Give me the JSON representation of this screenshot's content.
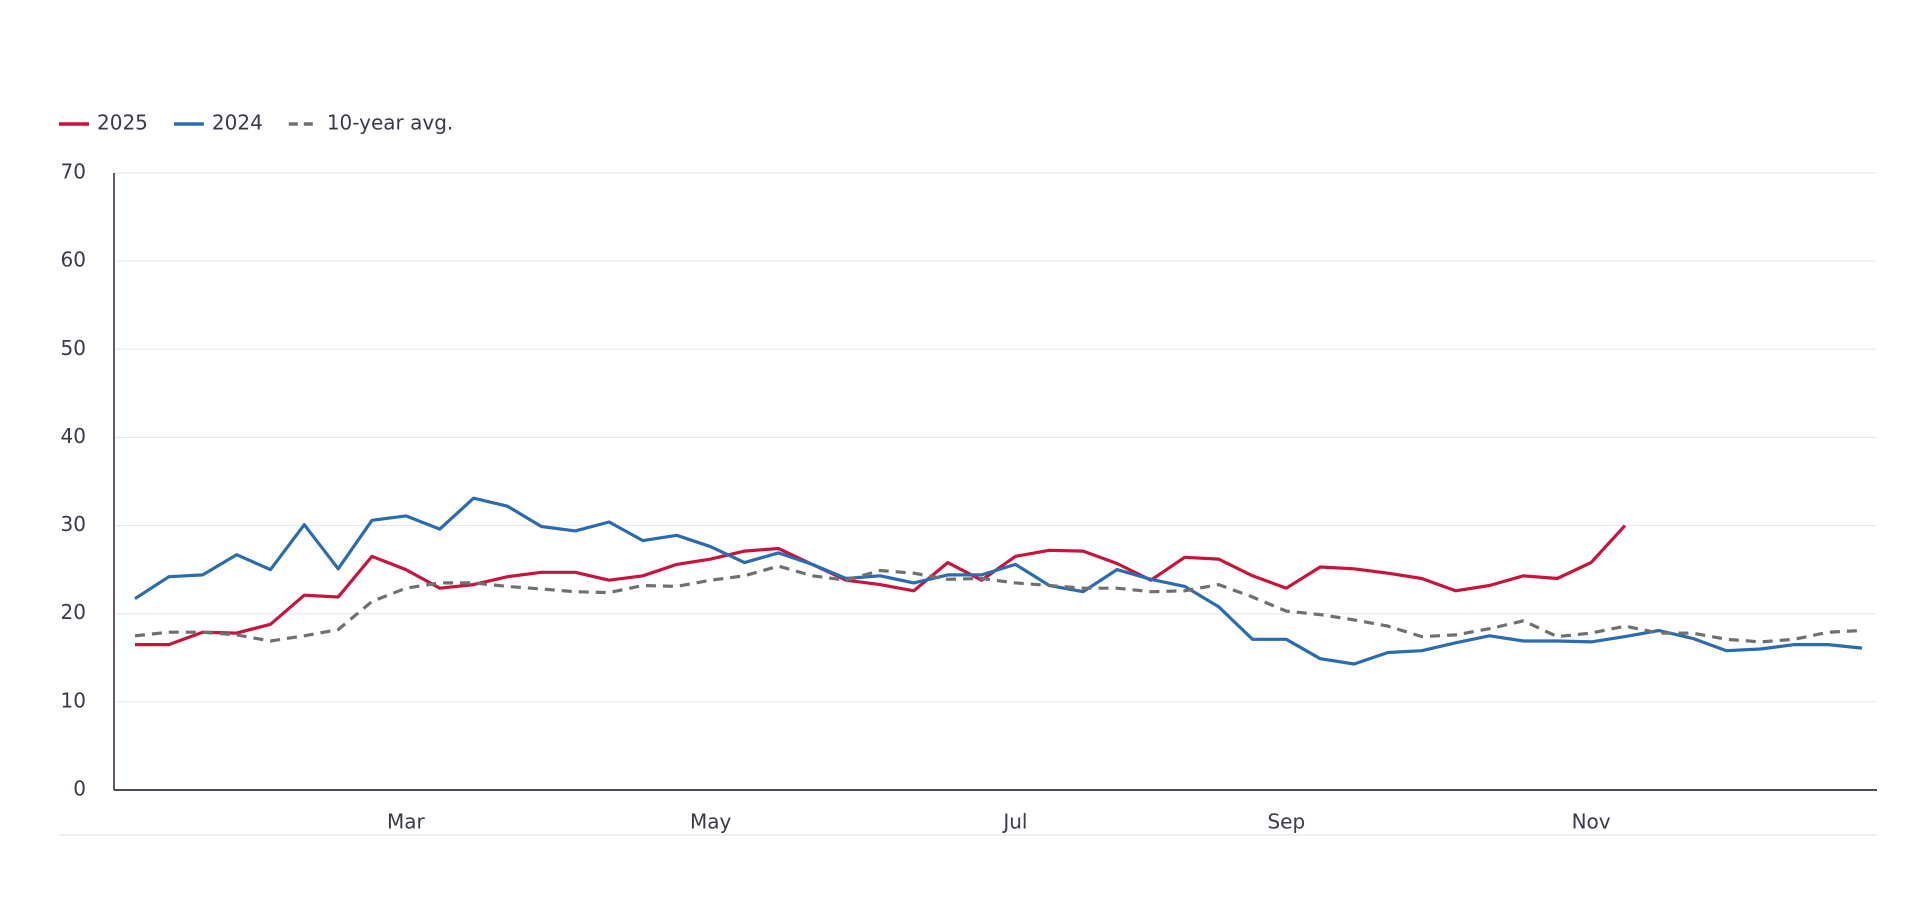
{
  "chart_data": {
    "type": "line",
    "categories": [
      null,
      null,
      null,
      null,
      null,
      null,
      null,
      null,
      "Mar",
      null,
      null,
      null,
      null,
      null,
      null,
      null,
      null,
      "May",
      null,
      null,
      null,
      null,
      null,
      null,
      null,
      null,
      "Jul",
      null,
      null,
      null,
      null,
      null,
      null,
      null,
      "Sep",
      null,
      null,
      null,
      null,
      null,
      null,
      null,
      null,
      "Nov",
      null,
      null,
      null,
      null,
      null,
      null,
      null,
      null
    ],
    "series": [
      {
        "name": "2025",
        "color": "#c8143c",
        "values": [
          16.5,
          16.5,
          17.9,
          17.8,
          18.8,
          22.1,
          21.9,
          26.5,
          25.0,
          22.9,
          23.3,
          24.2,
          24.7,
          24.7,
          23.8,
          24.3,
          25.6,
          26.2,
          27.1,
          27.4,
          25.6,
          23.8,
          23.3,
          22.6,
          25.8,
          23.8,
          26.5,
          27.2,
          27.1,
          25.7,
          23.8,
          26.4,
          26.2,
          24.3,
          22.9,
          25.3,
          25.1,
          24.6,
          24.0,
          22.6,
          23.2,
          24.3,
          24.0,
          25.8,
          30.0,
          null,
          null,
          null,
          null,
          null,
          null,
          null
        ]
      },
      {
        "name": "2024",
        "color": "#2b6cb0",
        "values": [
          21.7,
          24.2,
          24.4,
          26.7,
          25.0,
          30.1,
          25.1,
          30.6,
          31.1,
          29.6,
          33.1,
          32.2,
          29.9,
          29.4,
          30.4,
          28.3,
          28.9,
          27.6,
          25.8,
          26.9,
          25.6,
          24.0,
          24.3,
          23.5,
          24.4,
          24.4,
          25.6,
          23.2,
          22.5,
          25.0,
          23.9,
          23.1,
          20.8,
          17.1,
          17.1,
          14.9,
          14.3,
          15.6,
          15.8,
          16.7,
          17.5,
          16.9,
          16.9,
          16.8,
          17.4,
          18.1,
          17.2,
          15.8,
          16.0,
          16.5,
          16.5,
          16.1
        ]
      },
      {
        "name": "10-year avg.",
        "color": "#707070",
        "dashed": true,
        "values": [
          17.5,
          17.9,
          17.9,
          17.6,
          16.9,
          17.5,
          18.2,
          21.4,
          22.9,
          23.5,
          23.5,
          23.1,
          22.8,
          22.5,
          22.4,
          23.2,
          23.1,
          23.8,
          24.3,
          25.4,
          24.3,
          23.8,
          24.9,
          24.6,
          23.9,
          24.0,
          23.5,
          23.2,
          22.9,
          22.9,
          22.5,
          22.6,
          23.3,
          21.9,
          20.3,
          19.9,
          19.3,
          18.6,
          17.4,
          17.6,
          18.3,
          19.2,
          17.4,
          17.8,
          18.6,
          17.8,
          17.8,
          17.1,
          16.8,
          17.1,
          17.9,
          18.1
        ]
      }
    ],
    "ylim": [
      0,
      70
    ],
    "yticks": [
      0,
      10,
      20,
      30,
      40,
      50,
      60,
      70
    ],
    "grid": true,
    "legend": "top-left"
  }
}
